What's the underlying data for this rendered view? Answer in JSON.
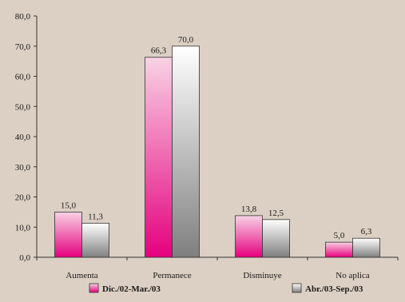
{
  "chart_data": {
    "type": "bar",
    "title": "",
    "xlabel": "",
    "ylabel": "",
    "categories": [
      "Aumenta",
      "Permanece",
      "Disminuye",
      "No aplica"
    ],
    "series": [
      {
        "name": "Dic./02-Mar./03",
        "values": [
          15.0,
          66.3,
          13.8,
          5.0
        ],
        "color_top": "#f8d2e4",
        "color_bottom": "#e6007e"
      },
      {
        "name": "Abr./03-Sep./03",
        "values": [
          11.3,
          70.0,
          12.5,
          6.3
        ],
        "color_top": "#ffffff",
        "color_bottom": "#7f7f7f"
      }
    ],
    "data_labels": [
      [
        "15,0",
        "66,3",
        "13,8",
        "5,0"
      ],
      [
        "11,3",
        "70,0",
        "12,5",
        "6,3"
      ]
    ],
    "ylim": [
      0,
      80
    ],
    "yticks": [
      0,
      10,
      20,
      30,
      40,
      50,
      60,
      70,
      80
    ],
    "ytick_labels": [
      "0,0",
      "10,0",
      "20,0",
      "30,0",
      "40,0",
      "50,0",
      "60,0",
      "70,0",
      "80,0"
    ],
    "grid": false,
    "legend": "bottom",
    "colors": {
      "background": "#dcd0c4",
      "axis": "#333333"
    }
  }
}
